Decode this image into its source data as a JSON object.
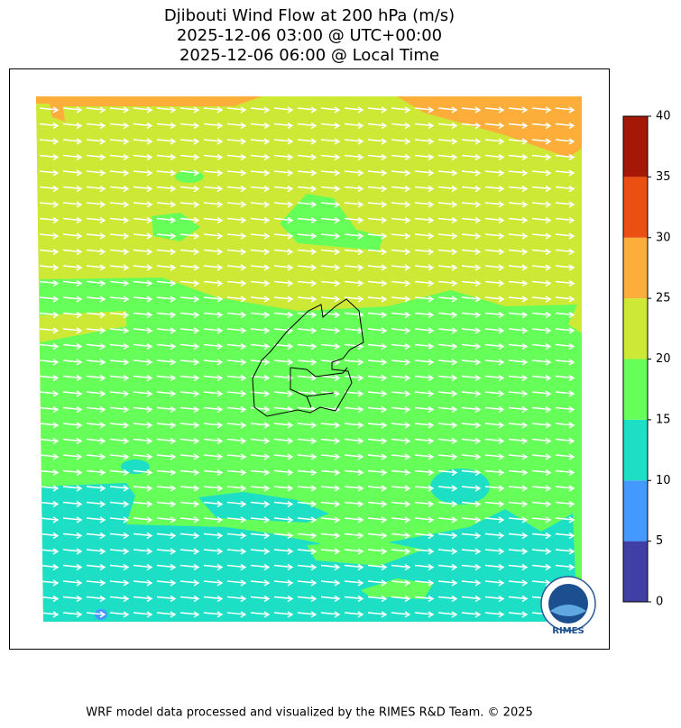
{
  "title": [
    "Djibouti Wind Flow at 200 hPa (m/s)",
    "2025-12-06 03:00 @ UTC+00:00",
    "2025-12-06 06:00 @ Local Time"
  ],
  "colorbar": {
    "ticks": [
      0,
      5,
      10,
      15,
      20,
      25,
      30,
      35,
      40
    ],
    "colors": [
      "#3f3fa6",
      "#4499ff",
      "#1ddfc6",
      "#66ff5a",
      "#cde835",
      "#fdae3a",
      "#ec4f12",
      "#a51707"
    ]
  },
  "logo": "RIMES",
  "footer": "WRF model data processed and visualized by the RIMES R&D Team. © 2025"
}
